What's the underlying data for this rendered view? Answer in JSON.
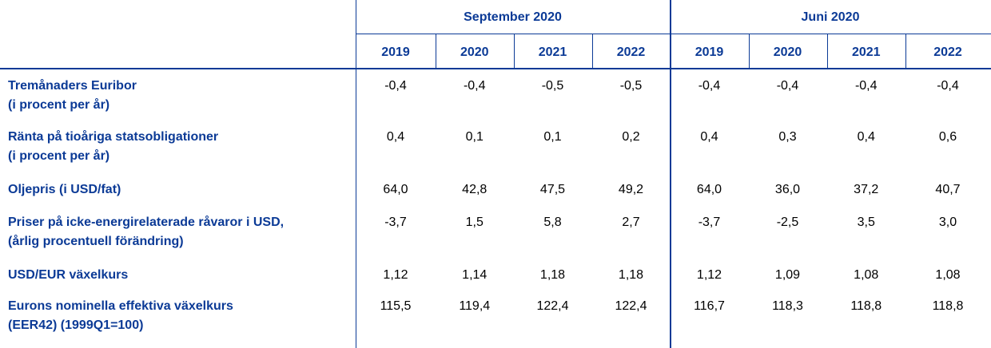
{
  "header": {
    "groups": [
      {
        "title": "September 2020",
        "years": [
          "2019",
          "2020",
          "2021",
          "2022"
        ]
      },
      {
        "title": "Juni 2020",
        "years": [
          "2019",
          "2020",
          "2021",
          "2022"
        ]
      }
    ]
  },
  "rows": [
    {
      "label": [
        "Tremånaders Euribor",
        "(i procent per år)"
      ],
      "values": [
        "-0,4",
        "-0,4",
        "-0,5",
        "-0,5",
        "-0,4",
        "-0,4",
        "-0,4",
        "-0,4"
      ]
    },
    {
      "label": [
        "Ränta på tioåriga statsobligationer",
        "(i procent per år)"
      ],
      "values": [
        "0,4",
        "0,1",
        "0,1",
        "0,2",
        "0,4",
        "0,3",
        "0,4",
        "0,6"
      ]
    },
    {
      "label": [
        "Oljepris (i USD/fat)"
      ],
      "values": [
        "64,0",
        "42,8",
        "47,5",
        "49,2",
        "64,0",
        "36,0",
        "37,2",
        "40,7"
      ]
    },
    {
      "label": [
        "Priser på icke-energirelaterade råvaror i USD,",
        "(årlig procentuell förändring)"
      ],
      "values": [
        "-3,7",
        "1,5",
        "5,8",
        "2,7",
        "-3,7",
        "-2,5",
        "3,5",
        "3,0"
      ]
    },
    {
      "label": [
        "USD/EUR växelkurs"
      ],
      "values": [
        "1,12",
        "1,14",
        "1,18",
        "1,18",
        "1,12",
        "1,09",
        "1,08",
        "1,08"
      ]
    },
    {
      "label": [
        "Eurons nominella effektiva växelkurs",
        "(EER42) (1999Q1=100)"
      ],
      "values": [
        "115,5",
        "119,4",
        "122,4",
        "122,4",
        "116,7",
        "118,3",
        "118,8",
        "118,8"
      ]
    }
  ]
}
